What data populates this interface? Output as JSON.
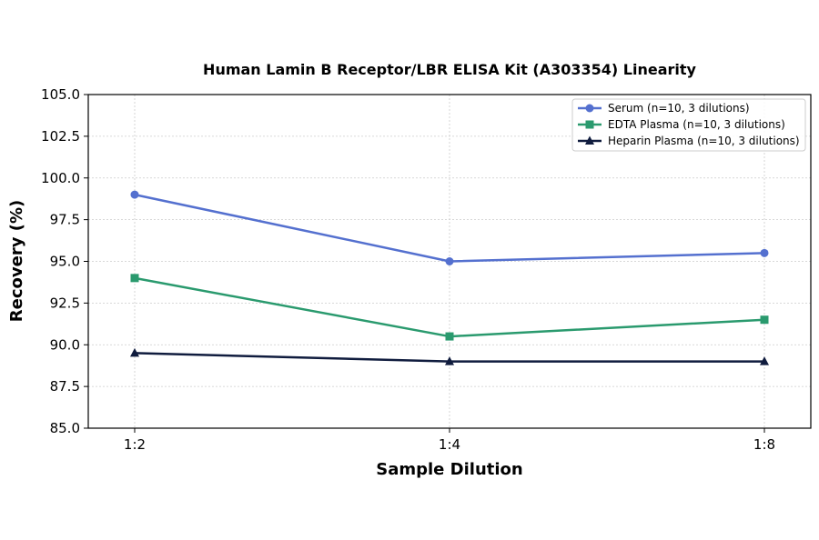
{
  "chart_data": {
    "type": "line",
    "title": "Human Lamin B Receptor/LBR ELISA Kit (A303354) Linearity",
    "xlabel": "Sample Dilution",
    "ylabel": "Recovery (%)",
    "categories": [
      "1:2",
      "1:4",
      "1:8"
    ],
    "ylim": [
      85.0,
      105.0
    ],
    "yticks": [
      "85.0",
      "87.5",
      "90.0",
      "92.5",
      "95.0",
      "97.5",
      "100.0",
      "102.5",
      "105.0"
    ],
    "grid": true,
    "legend_position": "top-right",
    "series": [
      {
        "name": "Serum (n=10, 3 dilutions)",
        "values": [
          99.0,
          95.0,
          95.5
        ],
        "color": "#5470cf",
        "marker": "circle"
      },
      {
        "name": "EDTA Plasma (n=10, 3 dilutions)",
        "values": [
          94.0,
          90.5,
          91.5
        ],
        "color": "#2a9a6e",
        "marker": "square"
      },
      {
        "name": "Heparin Plasma (n=10, 3 dilutions)",
        "values": [
          89.5,
          89.0,
          89.0
        ],
        "color": "#101c3e",
        "marker": "triangle"
      }
    ]
  }
}
